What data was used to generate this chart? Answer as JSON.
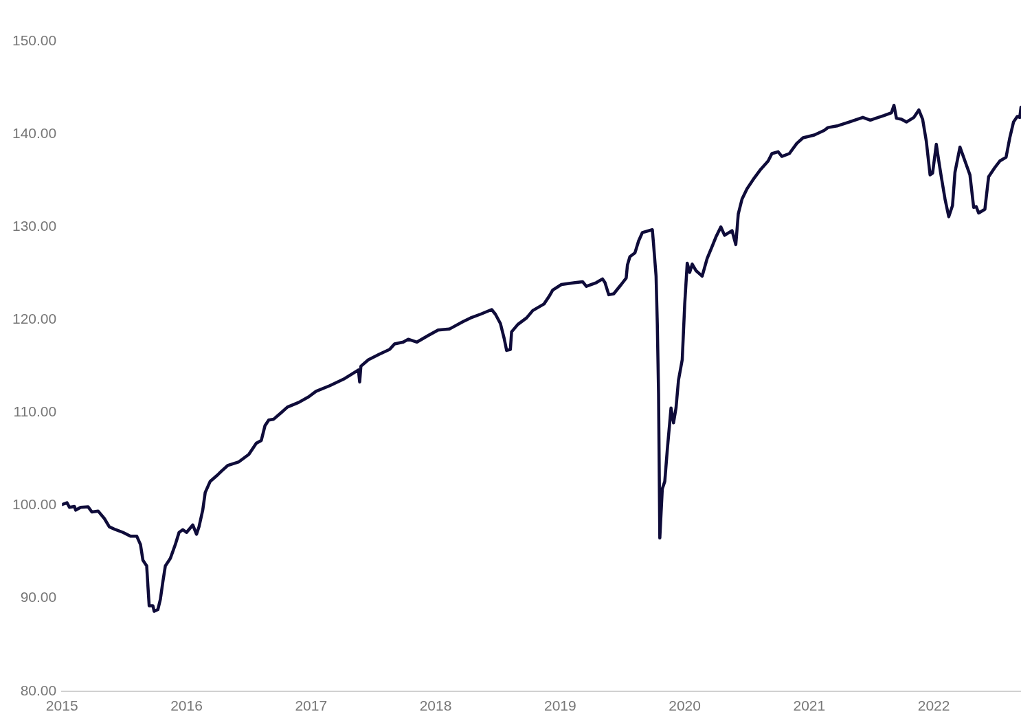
{
  "chart_data": {
    "type": "line",
    "xlim": [
      2015,
      2022.7
    ],
    "xticks": [
      2015,
      2016,
      2017,
      2018,
      2019,
      2020,
      2021,
      2022
    ],
    "ylim": [
      80,
      150
    ],
    "yticks": [
      {
        "value": 80,
        "label": "80.00"
      },
      {
        "value": 90,
        "label": "90.00"
      },
      {
        "value": 100,
        "label": "100.00"
      },
      {
        "value": 110,
        "label": "110.00"
      },
      {
        "value": 120,
        "label": "120.00"
      },
      {
        "value": 130,
        "label": "130.00"
      },
      {
        "value": 140,
        "label": "140.00"
      },
      {
        "value": 150,
        "label": "150.00"
      }
    ],
    "marker": "none",
    "line_style": "solid",
    "grid": false,
    "legend": false,
    "series": [
      {
        "color": "#0f0c3a",
        "x": [
          2015.0,
          2015.04,
          2015.06,
          2015.1,
          2015.11,
          2015.15,
          2015.21,
          2015.24,
          2015.29,
          2015.34,
          2015.38,
          2015.43,
          2015.49,
          2015.55,
          2015.6,
          2015.63,
          2015.65,
          2015.68,
          2015.69,
          2015.7,
          2015.73,
          2015.74,
          2015.77,
          2015.79,
          2015.81,
          2015.83,
          2015.87,
          2015.91,
          2015.94,
          2015.97,
          2016.0,
          2016.05,
          2016.08,
          2016.1,
          2016.13,
          2016.15,
          2016.19,
          2016.25,
          2016.28,
          2016.33,
          2016.42,
          2016.5,
          2016.56,
          2016.6,
          2016.63,
          2016.66,
          2016.7,
          2016.76,
          2016.81,
          2016.9,
          2016.98,
          2017.04,
          2017.15,
          2017.26,
          2017.38,
          2017.39,
          2017.4,
          2017.46,
          2017.55,
          2017.63,
          2017.67,
          2017.74,
          2017.78,
          2017.85,
          2017.94,
          2018.02,
          2018.11,
          2018.22,
          2018.28,
          2018.36,
          2018.45,
          2018.48,
          2018.52,
          2018.55,
          2018.57,
          2018.6,
          2018.61,
          2018.66,
          2018.73,
          2018.78,
          2018.87,
          2018.91,
          2018.94,
          2019.01,
          2019.12,
          2019.18,
          2019.21,
          2019.29,
          2019.34,
          2019.36,
          2019.39,
          2019.43,
          2019.49,
          2019.53,
          2019.54,
          2019.56,
          2019.6,
          2019.63,
          2019.66,
          2019.74,
          2019.75,
          2019.77,
          2019.78,
          2019.79,
          2019.8,
          2019.82,
          2019.84,
          2019.86,
          2019.89,
          2019.91,
          2019.93,
          2019.95,
          2019.98,
          2020.0,
          2020.02,
          2020.04,
          2020.06,
          2020.09,
          2020.14,
          2020.18,
          2020.22,
          2020.25,
          2020.29,
          2020.32,
          2020.38,
          2020.41,
          2020.43,
          2020.46,
          2020.5,
          2020.56,
          2020.61,
          2020.67,
          2020.7,
          2020.75,
          2020.78,
          2020.84,
          2020.9,
          2020.95,
          2021.04,
          2021.12,
          2021.15,
          2021.23,
          2021.32,
          2021.43,
          2021.49,
          2021.6,
          2021.66,
          2021.68,
          2021.7,
          2021.74,
          2021.78,
          2021.84,
          2021.88,
          2021.91,
          2021.94,
          2021.97,
          2021.99,
          2022.02,
          2022.04,
          2022.06,
          2022.09,
          2022.12,
          2022.15,
          2022.17,
          2022.21,
          2022.25,
          2022.29,
          2022.32,
          2022.34,
          2022.36,
          2022.41,
          2022.44,
          2022.49,
          2022.53,
          2022.58,
          2022.61,
          2022.64,
          2022.67,
          2022.69,
          2022.7
        ],
        "values": [
          100.1,
          100.3,
          99.8,
          99.9,
          99.5,
          99.8,
          99.85,
          99.3,
          99.4,
          98.6,
          97.7,
          97.4,
          97.1,
          96.7,
          96.7,
          95.8,
          94.1,
          93.5,
          91.3,
          89.2,
          89.2,
          88.6,
          88.8,
          89.9,
          91.8,
          93.5,
          94.3,
          95.8,
          97.1,
          97.4,
          97.1,
          97.9,
          96.9,
          97.7,
          99.5,
          101.4,
          102.6,
          103.3,
          103.7,
          104.3,
          104.7,
          105.5,
          106.7,
          107.0,
          108.6,
          109.2,
          109.3,
          110.0,
          110.6,
          111.1,
          111.7,
          112.3,
          112.9,
          113.6,
          114.6,
          113.3,
          115.0,
          115.7,
          116.3,
          116.8,
          117.4,
          117.6,
          117.9,
          117.6,
          118.3,
          118.9,
          119.0,
          119.8,
          120.2,
          120.6,
          121.1,
          120.6,
          119.6,
          118.0,
          116.7,
          116.8,
          118.7,
          119.5,
          120.2,
          121.0,
          121.7,
          122.5,
          123.2,
          123.8,
          124.0,
          124.1,
          123.6,
          124.0,
          124.4,
          124.0,
          122.7,
          122.8,
          123.8,
          124.5,
          125.9,
          126.8,
          127.2,
          128.5,
          129.4,
          129.7,
          128.1,
          124.7,
          119.5,
          112.0,
          96.5,
          101.8,
          102.6,
          106.0,
          110.5,
          108.9,
          110.5,
          113.5,
          115.7,
          121.7,
          126.1,
          125.1,
          126.0,
          125.3,
          124.7,
          126.6,
          127.9,
          128.9,
          130.0,
          129.1,
          129.6,
          128.1,
          131.4,
          133.0,
          134.1,
          135.3,
          136.2,
          137.1,
          137.9,
          138.1,
          137.6,
          137.9,
          139.0,
          139.6,
          139.9,
          140.4,
          140.7,
          140.9,
          141.3,
          141.8,
          141.5,
          142.0,
          142.3,
          143.1,
          141.7,
          141.6,
          141.3,
          141.8,
          142.6,
          141.6,
          139.2,
          135.6,
          135.8,
          138.9,
          137.1,
          135.4,
          133.0,
          131.1,
          132.3,
          135.9,
          138.6,
          137.1,
          135.6,
          132.1,
          132.2,
          131.5,
          131.9,
          135.4,
          136.4,
          137.1,
          137.5,
          139.6,
          141.3,
          141.9,
          141.8,
          142.9
        ]
      }
    ]
  }
}
